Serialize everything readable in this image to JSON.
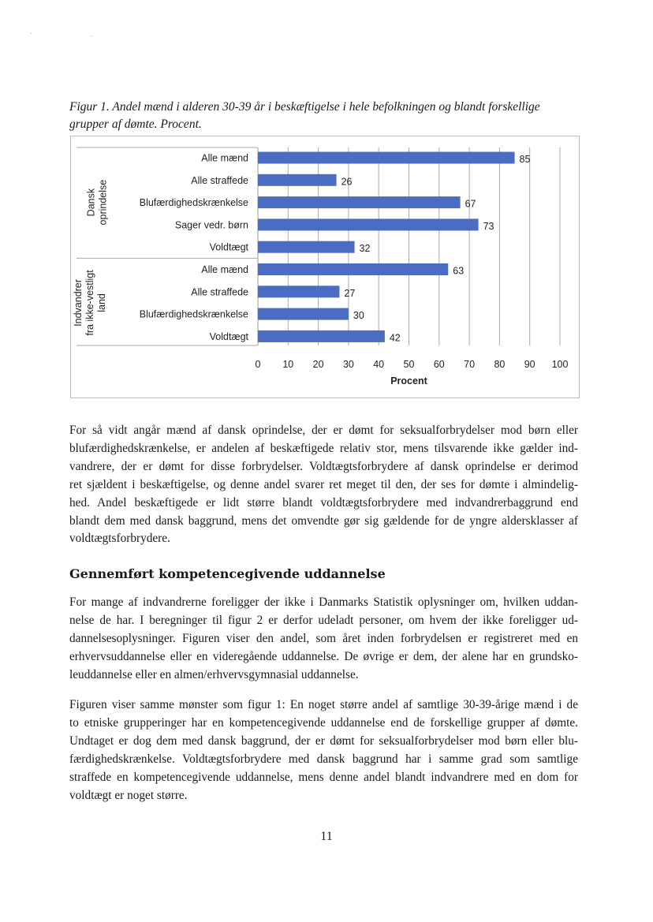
{
  "figure_caption": [
    "Figur 1. Andel mænd i alderen 30-39 år i beskæftigelse i hele befolkningen og blandt forskellige",
    "grupper af dømte. Procent."
  ],
  "chart_data": {
    "type": "bar",
    "orientation": "horizontal",
    "groups": [
      {
        "label": [
          "Dansk",
          "oprindelse"
        ],
        "categories": [
          "Alle mænd",
          "Alle straffede",
          "Blufærdighedskrænkelse",
          "Sager vedr. børn",
          "Voldtægt"
        ],
        "values": [
          85,
          26,
          67,
          73,
          32
        ]
      },
      {
        "label": [
          "Indvandrer",
          "fra ikke-vestligt",
          "land"
        ],
        "categories": [
          "Alle mænd",
          "Alle straffede",
          "Blufærdighedskrænkelse",
          "Voldtægt"
        ],
        "values": [
          63,
          27,
          30,
          42
        ]
      }
    ],
    "xlabel": "Procent",
    "xlim": [
      0,
      100
    ],
    "xticks": [
      "0",
      "10",
      "20",
      "30",
      "40",
      "50",
      "60",
      "70",
      "80",
      "90",
      "100"
    ],
    "grid": true,
    "data_labels": true,
    "bar_color": "#4a6cc3"
  },
  "paragraph1": [
    "For så vidt angår mænd af dansk oprindelse, der er dømt for seksualforbrydelser mod børn eller",
    "blufærdighedskrænkelse, er andelen af beskæftigede relativ stor, mens tilsvarende ikke gælder ind-",
    "vandrere, der er dømt for disse forbrydelser. Voldtægtsforbrydere af dansk oprindelse er derimod",
    "ret sjældent i beskæftigelse, og denne andel svarer ret meget til den, der ses for dømte i almindelig-",
    "hed. Andel beskæftigede er lidt større blandt voldtægtsforbrydere med indvandrerbaggrund end",
    "blandt dem med dansk baggrund, mens det omvendte gør sig gældende for de yngre aldersklasser af",
    "voldtægtsforbrydere."
  ],
  "heading": "Gennemført kompetencegivende uddannelse",
  "paragraph2": [
    "For mange af indvandrerne foreligger der ikke i Danmarks Statistik oplysninger om, hvilken uddan-",
    "nelse de har. I beregninger til figur 2 er derfor udeladt personer, om hvem der ikke foreligger ud-",
    "dannelsesoplysninger. Figuren viser den andel, som året inden forbrydelsen er registreret med en",
    "erhvervsuddannelse eller en videregående uddannelse. De øvrige er dem, der alene har en grundsko-",
    "leuddannelse eller en almen/erhvervsgymnasial uddannelse."
  ],
  "paragraph3": [
    "Figuren viser samme mønster som figur 1: En noget større andel af samtlige 30-39-årige mænd i de",
    "to etniske grupperinger har en kompetencegivende uddannelse end de forskellige grupper af dømte.",
    "Undtaget er dog dem med dansk baggrund, der er dømt for seksualforbrydelser mod børn eller blu-",
    "færdighedskrænkelse. Voldtægtsforbrydere med dansk baggrund har i samme grad som samtlige",
    "straffede en kompetencegivende uddannelse, mens denne andel blandt indvandrere med en dom for",
    "voldtægt er noget større."
  ],
  "page_number": "11"
}
